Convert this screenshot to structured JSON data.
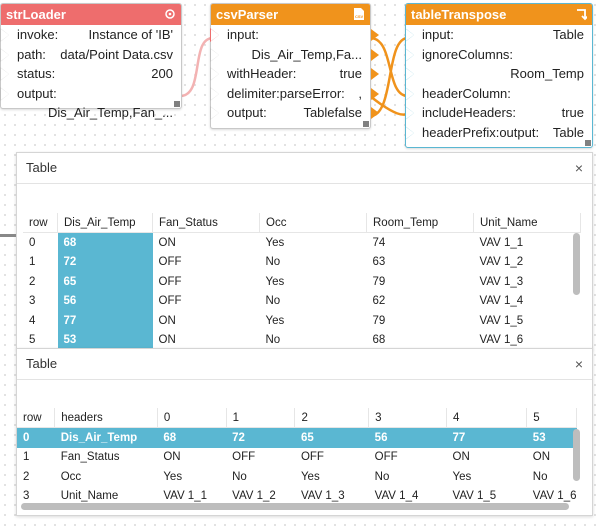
{
  "colors": {
    "strloader": "#ee6d6d",
    "csvparser": "#f0931c",
    "tabletranspose": "#f0931c",
    "selection": "#5ab7d2"
  },
  "strLoader": {
    "title": "strLoader",
    "rows": [
      {
        "k": "invoke:",
        "v": "Instance of 'IB'"
      },
      {
        "k": "path:",
        "v": "data/Point Data.csv"
      },
      {
        "k": "status:",
        "v": "200"
      },
      {
        "k": "output:",
        "v": "Dis_Air_Temp,Fan_..."
      }
    ]
  },
  "csvParser": {
    "title": "csvParser",
    "rows": [
      {
        "k": "input:",
        "v": "Dis_Air_Temp,Fa..."
      },
      {
        "k": "withHeader:",
        "v": "true"
      },
      {
        "k": "delimiter:",
        "v": ","
      },
      {
        "k": "parseError:",
        "v": "false"
      },
      {
        "k": "output:",
        "v": "Table"
      }
    ]
  },
  "tableTranspose": {
    "title": "tableTranspose",
    "rows": [
      {
        "k": "input:",
        "v": "Table"
      },
      {
        "k": "ignoreColumns:",
        "v": "Room_Temp"
      },
      {
        "k": "headerColumn:",
        "v": ""
      },
      {
        "k": "includeHeaders:",
        "v": "true"
      },
      {
        "k": "headerPrefix:",
        "v": ""
      },
      {
        "k": "output:",
        "v": "Table"
      }
    ]
  },
  "table1": {
    "title": "Table",
    "close": "×",
    "columns": [
      "row",
      "Dis_Air_Temp",
      "Fan_Status",
      "Occ",
      "Room_Temp",
      "Unit_Name"
    ],
    "rows": [
      [
        "0",
        "68",
        "ON",
        "Yes",
        "74",
        "VAV 1_1"
      ],
      [
        "1",
        "72",
        "OFF",
        "No",
        "63",
        "VAV 1_2"
      ],
      [
        "2",
        "65",
        "OFF",
        "Yes",
        "79",
        "VAV 1_3"
      ],
      [
        "3",
        "56",
        "OFF",
        "No",
        "62",
        "VAV 1_4"
      ],
      [
        "4",
        "77",
        "ON",
        "Yes",
        "79",
        "VAV 1_5"
      ],
      [
        "5",
        "53",
        "ON",
        "No",
        "68",
        "VAV 1_6"
      ]
    ]
  },
  "table2": {
    "title": "Table",
    "close": "×",
    "columns": [
      "row",
      "headers",
      "0",
      "1",
      "2",
      "3",
      "4",
      "5"
    ],
    "rows": [
      [
        "0",
        "Dis_Air_Temp",
        "68",
        "72",
        "65",
        "56",
        "77",
        "53"
      ],
      [
        "1",
        "Fan_Status",
        "ON",
        "OFF",
        "OFF",
        "OFF",
        "ON",
        "ON"
      ],
      [
        "2",
        "Occ",
        "Yes",
        "No",
        "Yes",
        "No",
        "Yes",
        "No"
      ],
      [
        "3",
        "Unit_Name",
        "VAV 1_1",
        "VAV 1_2",
        "VAV 1_3",
        "VAV 1_4",
        "VAV 1_5",
        "VAV 1_6"
      ]
    ]
  }
}
